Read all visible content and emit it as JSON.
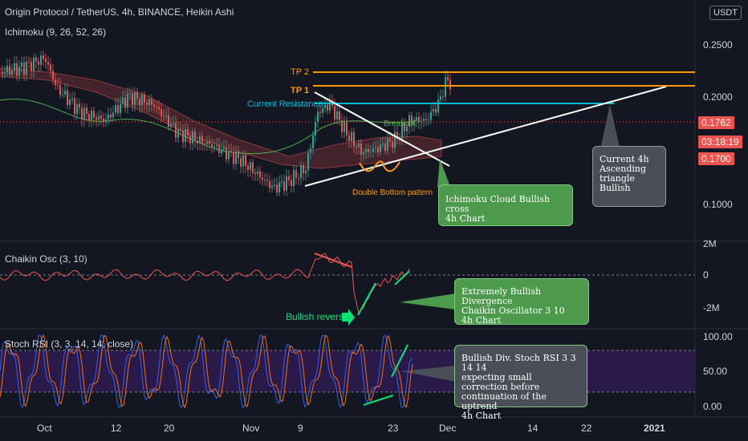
{
  "header": {
    "title": "Origin Protocol / TetherUS, 4h, BINANCE, Heikin Ashi",
    "indicator": "Ichimoku (9, 26, 52, 26)",
    "currency": "USDT"
  },
  "price_axis": {
    "ticks": [
      "0.2500",
      "0.2000",
      "0.1000"
    ]
  },
  "price_tags": {
    "current": "0.1762",
    "countdown": "03:18:19",
    "level": "0.1700"
  },
  "main_labels": {
    "tp2": "TP 2",
    "tp1": "TP 1",
    "resistance": "Current Resistance",
    "breakout": "Breakout",
    "double_bottom": "Double Bottom pattern"
  },
  "notes": {
    "triangle": [
      "Current 4h",
      "Ascending",
      "triangle",
      "Bullish"
    ],
    "ichimoku": [
      "Ichimoku Cloud Bullish cross",
      "4h Chart"
    ],
    "chaikin": [
      "Extremely Bullish Divergence",
      "Chaikin Oscillator 3 10",
      "4h Chart"
    ],
    "stoch": [
      "Bullish Div. Stoch RSI 3 3 14 14",
      "expecting small correction before",
      "continuation of the uptrend",
      "4h Chart"
    ]
  },
  "chaikin": {
    "title": "Chaikin Osc (3, 10)",
    "ticks": [
      "2M",
      "0",
      "-2M"
    ],
    "reversal": "Bullish reversal"
  },
  "stoch": {
    "title": "Stoch RSI (3, 3, 14, 14, close)",
    "ticks": [
      "100.00",
      "50.00",
      "0.00"
    ]
  },
  "time_axis": [
    "Oct",
    "12",
    "20",
    "Nov",
    "9",
    "23",
    "Dec",
    "14",
    "22",
    "2021"
  ],
  "colors": {
    "background": "#131722",
    "bull": "#26a69a",
    "bear": "#ef5350",
    "target": "#ff9800",
    "resistance": "#00bcd4",
    "trendline": "#ffffff",
    "note_green": "#4c9a4c",
    "note_gray": "#4a4e57",
    "chaikin_line": "#ef5350",
    "divergence": "#00e676",
    "stoch_k": "#2962ff",
    "stoch_d": "#ff6d00",
    "rsi_band": "#2a1a4a"
  }
}
